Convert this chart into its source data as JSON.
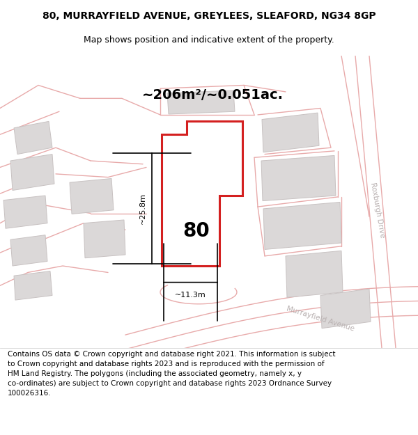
{
  "title_line1": "80, MURRAYFIELD AVENUE, GREYLEES, SLEAFORD, NG34 8GP",
  "title_line2": "Map shows position and indicative extent of the property.",
  "area_text": "~206m²/~0.051ac.",
  "property_number": "80",
  "dim_vertical": "~25.8m",
  "dim_horizontal": "~11.3m",
  "street_label1": "Roxburgh Drive",
  "street_label2": "Murrayfield Avenue",
  "footer_text": "Contains OS data © Crown copyright and database right 2021. This information is subject\nto Crown copyright and database rights 2023 and is reproduced with the permission of\nHM Land Registry. The polygons (including the associated geometry, namely x, y\nco-ordinates) are subject to Crown copyright and database rights 2023 Ordnance Survey\n100026316.",
  "bg_color": "#f2f0f0",
  "plot_outline_color": "#d42020",
  "road_color": "#e8aaaa",
  "building_fill": "#dbd8d8",
  "building_outline": "#c8c2c2",
  "street_text_color": "#b8b0b0",
  "title_fontsize": 10,
  "subtitle_fontsize": 9,
  "area_fontsize": 14,
  "num_fontsize": 20,
  "dim_fontsize": 8,
  "footer_fontsize": 7.5
}
